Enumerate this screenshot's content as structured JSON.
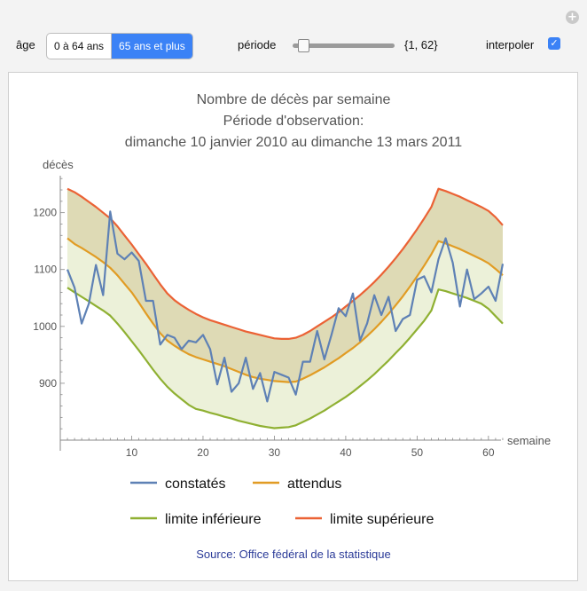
{
  "controls": {
    "age_label": "âge",
    "age_options": [
      "0 à 64 ans",
      "65 ans et plus"
    ],
    "age_selected": "65 ans et plus",
    "periode_label": "période",
    "periode_value": "{1, 62}",
    "periode_range": [
      1,
      62
    ],
    "interpoler_label": "interpoler",
    "interpoler_checked": true,
    "interpoler_mark": "✓",
    "add_icon": "plus-icon"
  },
  "chart_data": {
    "type": "line",
    "title_lines": [
      "Nombre de décès par semaine",
      "Période d'observation:",
      "dimanche 10 janvier 2010 au dimanche 13 mars 2011"
    ],
    "ylabel": "décès",
    "xlabel": "semaine",
    "xlim": [
      0,
      63
    ],
    "ylim": [
      800,
      1265
    ],
    "xticks": [
      10,
      20,
      30,
      40,
      50,
      60
    ],
    "yticks": [
      900,
      1000,
      1100,
      1200
    ],
    "x": [
      1,
      2,
      3,
      4,
      5,
      6,
      7,
      8,
      9,
      10,
      11,
      12,
      13,
      14,
      15,
      16,
      17,
      18,
      19,
      20,
      21,
      22,
      23,
      24,
      25,
      26,
      27,
      28,
      29,
      30,
      31,
      32,
      33,
      34,
      35,
      36,
      37,
      38,
      39,
      40,
      41,
      42,
      43,
      44,
      45,
      46,
      47,
      48,
      49,
      50,
      51,
      52,
      53,
      54,
      55,
      56,
      57,
      58,
      59,
      60,
      61,
      62
    ],
    "series": [
      {
        "name": "constatés",
        "color": "#5e81b5",
        "values": [
          1100,
          1068,
          1005,
          1040,
          1108,
          1055,
          1202,
          1128,
          1118,
          1130,
          1115,
          1045,
          1045,
          968,
          985,
          980,
          960,
          975,
          972,
          985,
          960,
          898,
          945,
          885,
          900,
          945,
          890,
          918,
          868,
          920,
          915,
          910,
          880,
          938,
          938,
          992,
          942,
          985,
          1032,
          1018,
          1058,
          975,
          1005,
          1055,
          1020,
          1052,
          992,
          1013,
          1020,
          1082,
          1088,
          1060,
          1118,
          1155,
          1112,
          1035,
          1100,
          1048,
          1058,
          1070,
          1045,
          1110
        ]
      },
      {
        "name": "attendus",
        "color": "#e19c24",
        "values": [
          1155,
          1145,
          1138,
          1130,
          1122,
          1113,
          1103,
          1090,
          1075,
          1060,
          1042,
          1023,
          1005,
          988,
          975,
          966,
          958,
          951,
          946,
          942,
          938,
          934,
          930,
          925,
          920,
          915,
          911,
          908,
          906,
          904,
          903,
          902,
          903,
          908,
          914,
          921,
          928,
          936,
          944,
          953,
          962,
          972,
          983,
          995,
          1008,
          1022,
          1037,
          1053,
          1070,
          1088,
          1107,
          1127,
          1150,
          1146,
          1141,
          1136,
          1130,
          1124,
          1118,
          1111,
          1101,
          1090
        ]
      },
      {
        "name": "limite inférieure",
        "color": "#8fb032",
        "values": [
          1068,
          1060,
          1052,
          1044,
          1036,
          1028,
          1019,
          1005,
          990,
          974,
          958,
          941,
          924,
          908,
          894,
          882,
          872,
          862,
          855,
          852,
          848,
          845,
          841,
          838,
          834,
          831,
          828,
          825,
          823,
          821,
          822,
          823,
          826,
          832,
          838,
          845,
          852,
          860,
          868,
          876,
          885,
          895,
          905,
          916,
          928,
          940,
          953,
          966,
          980,
          995,
          1010,
          1028,
          1065,
          1062,
          1058,
          1054,
          1050,
          1045,
          1040,
          1031,
          1018,
          1005
        ]
      },
      {
        "name": "limite supérieure",
        "color": "#eb6235",
        "values": [
          1242,
          1236,
          1228,
          1219,
          1210,
          1200,
          1190,
          1176,
          1160,
          1144,
          1127,
          1110,
          1092,
          1074,
          1058,
          1046,
          1037,
          1029,
          1022,
          1016,
          1011,
          1007,
          1003,
          999,
          995,
          991,
          988,
          985,
          982,
          979,
          978,
          978,
          980,
          985,
          992,
          1000,
          1008,
          1016,
          1025,
          1035,
          1045,
          1055,
          1066,
          1078,
          1091,
          1105,
          1120,
          1136,
          1153,
          1171,
          1190,
          1210,
          1242,
          1238,
          1233,
          1228,
          1222,
          1216,
          1210,
          1203,
          1192,
          1178
        ]
      }
    ],
    "fills": [
      {
        "between": [
          "limite inférieure",
          "attendus"
        ],
        "color": "#e9eed2"
      },
      {
        "between": [
          "attendus",
          "limite supérieure"
        ],
        "color": "#d8d4a8"
      }
    ],
    "legend": "bottom, two rows"
  },
  "source": "Source: Office fédéral de la statistique"
}
